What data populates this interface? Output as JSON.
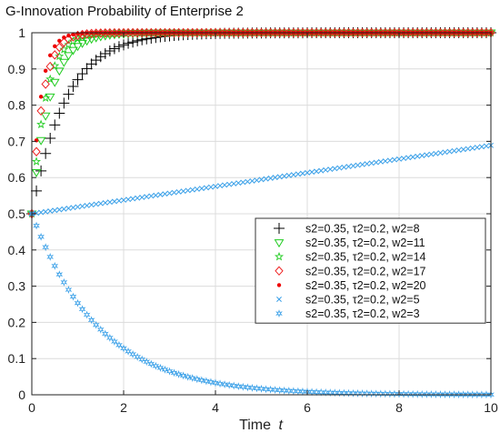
{
  "chart_data": {
    "type": "scatter",
    "title": "G-Innovation Probability of Enterprise 2",
    "xlabel": "Time",
    "xlabel_var": "t",
    "ylabel": "",
    "xlim": [
      0,
      10
    ],
    "ylim": [
      0,
      1
    ],
    "xticks": [
      0,
      2,
      4,
      6,
      8,
      10
    ],
    "yticks": [
      0,
      0.1,
      0.2,
      0.3,
      0.4,
      0.5,
      0.6,
      0.7,
      0.8,
      0.9,
      1
    ],
    "grid": true,
    "legend_position": "center-right",
    "x_step": 0.1,
    "series": [
      {
        "name": "s2=0.35, τ2=0.2, w2=8",
        "marker": "plus",
        "color": "#000000",
        "start": 0.5,
        "end": 1.0,
        "rate": 1.35
      },
      {
        "name": "s2=0.35, τ2=0.2, w2=11",
        "marker": "triangle-down",
        "color": "#22cc22",
        "start": 0.5,
        "end": 1.0,
        "rate": 2.6
      },
      {
        "name": "s2=0.35, τ2=0.2, w2=14",
        "marker": "pentagram",
        "color": "#22cc22",
        "start": 0.5,
        "end": 1.0,
        "rate": 3.4
      },
      {
        "name": "s2=0.35, τ2=0.2, w2=17",
        "marker": "diamond",
        "color": "#ee2222",
        "start": 0.5,
        "end": 1.0,
        "rate": 4.2
      },
      {
        "name": "s2=0.35, τ2=0.2, w2=20",
        "marker": "dot",
        "color": "#ee0000",
        "start": 0.5,
        "end": 1.0,
        "rate": 5.2
      },
      {
        "name": "s2=0.35, τ2=0.2, w2=5",
        "marker": "x",
        "color": "#3aa0e8",
        "start": 0.5,
        "end": 0.689,
        "rate": 0.0
      },
      {
        "name": "s2=0.35, τ2=0.2, w2=3",
        "marker": "hexagram",
        "color": "#3aa0e8",
        "start": 0.5,
        "end": 0.0,
        "rate": 0.68
      }
    ]
  }
}
